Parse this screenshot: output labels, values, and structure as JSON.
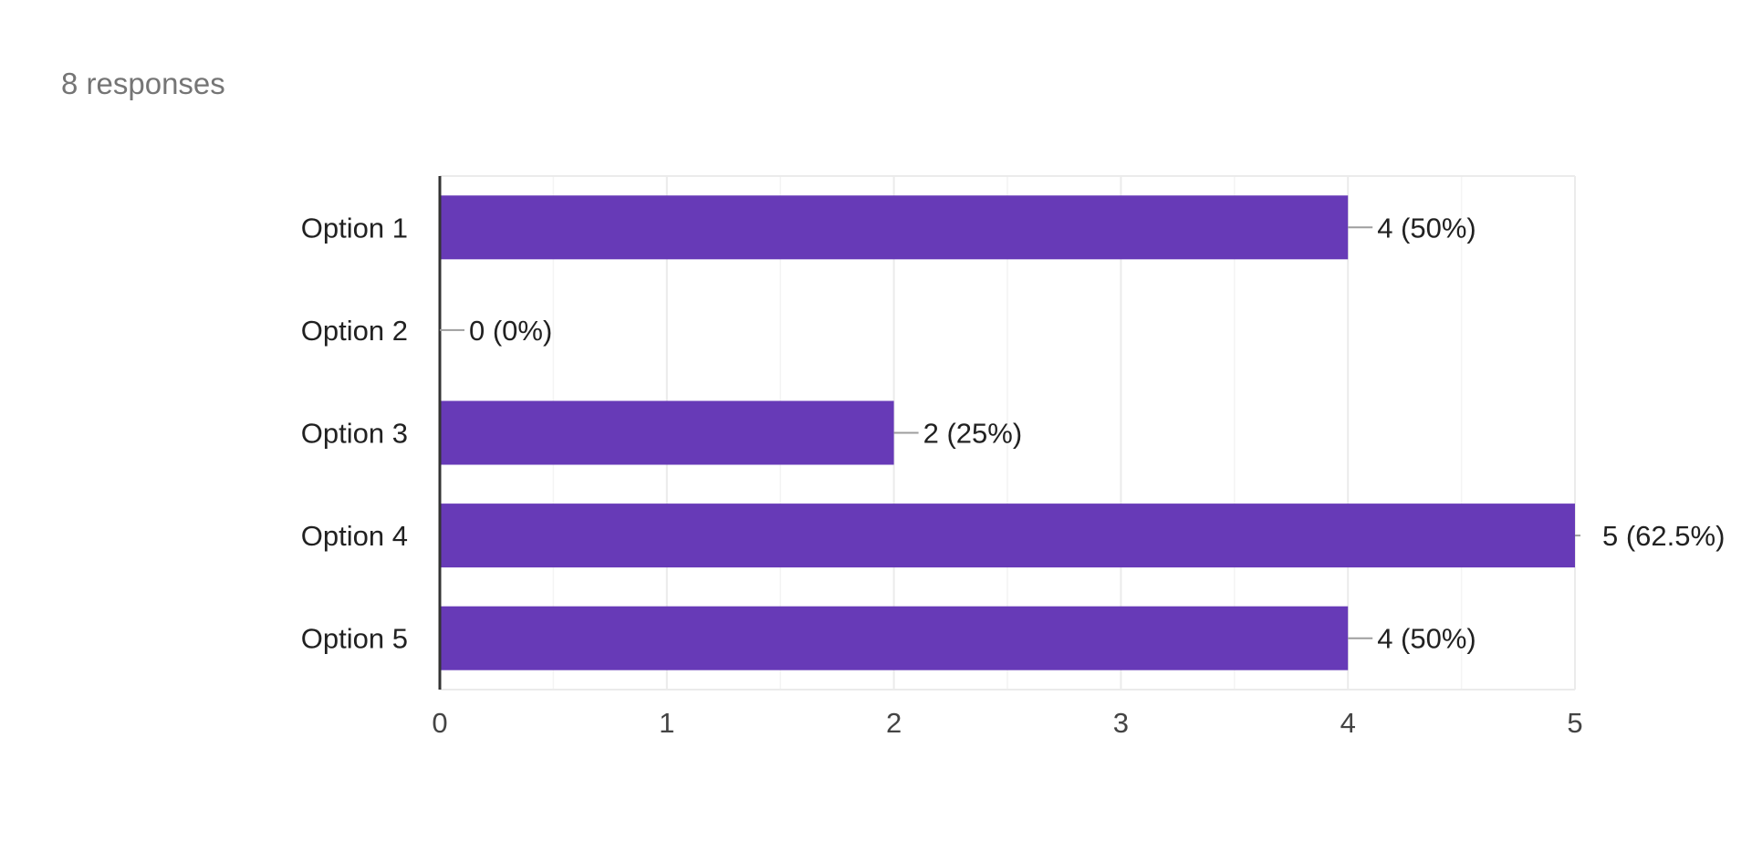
{
  "header": {
    "responses_text": "8 responses"
  },
  "colors": {
    "bar": "#673ab7",
    "grid": "#ebebeb",
    "minor_grid": "#f4f4f4",
    "axis": "#333333",
    "leader": "#9e9e9e"
  },
  "chart_data": {
    "type": "bar",
    "orientation": "horizontal",
    "categories": [
      "Option 1",
      "Option 2",
      "Option 3",
      "Option 4",
      "Option 5"
    ],
    "values": [
      4,
      0,
      2,
      5,
      4
    ],
    "data_labels": [
      "4 (50%)",
      "0 (0%)",
      "2 (25%)",
      "5 (62.5%)",
      "4 (50%)"
    ],
    "xlim": [
      0,
      5
    ],
    "xticks": [
      0,
      1,
      2,
      3,
      4,
      5
    ],
    "grid": true,
    "legend": "none"
  }
}
